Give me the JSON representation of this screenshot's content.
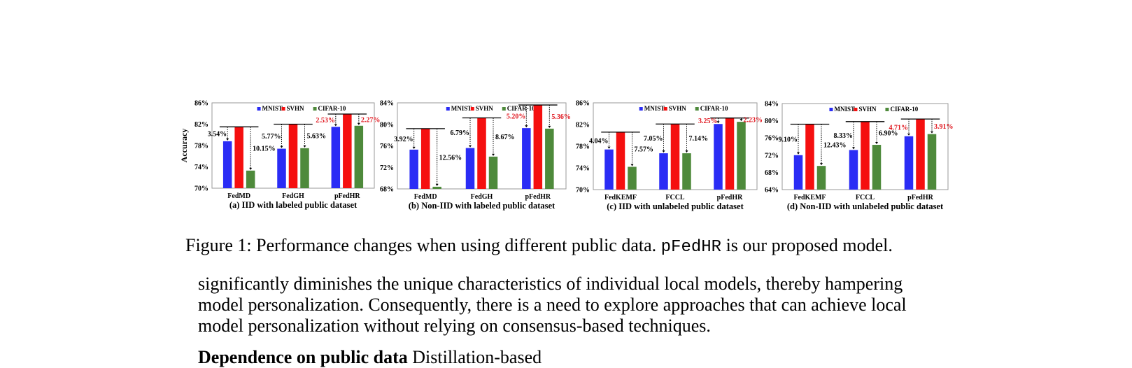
{
  "figure": {
    "colors": {
      "MNIST": "#2a2cf5",
      "SVHN": "#f50f0f",
      "CIFAR-10": "#4e8a3b",
      "highlight": "#e0141c"
    },
    "caption": {
      "prefix": "Figure 1: Performance changes when using different public data.",
      "model": "pFedHR",
      "suffix": "is our proposed model."
    }
  },
  "chart_data": [
    {
      "type": "bar",
      "ylabel": "Accuracy",
      "ylim": [
        70,
        86
      ],
      "yticks": [
        "70%",
        "74%",
        "78%",
        "82%",
        "86%"
      ],
      "legend": [
        "MNIST",
        "SVHN",
        "CIFAR-10"
      ],
      "legend_position": "top",
      "categories": [
        "FedMD",
        "FedGH",
        "pFedHR"
      ],
      "series": [
        {
          "name": "MNIST",
          "values": [
            78.8,
            77.4,
            81.5
          ]
        },
        {
          "name": "SVHN",
          "values": [
            81.5,
            82.0,
            83.9
          ]
        },
        {
          "name": "CIFAR-10",
          "values": [
            73.3,
            77.5,
            81.7
          ]
        }
      ],
      "annotations": [
        {
          "category": "FedMD",
          "side": "left",
          "text": "3.54%",
          "highlight": false
        },
        {
          "category": "FedMD",
          "side": "right",
          "text": "10.15%",
          "highlight": false
        },
        {
          "category": "FedGH",
          "side": "left",
          "text": "5.77%",
          "highlight": false
        },
        {
          "category": "FedGH",
          "side": "right",
          "text": "5.63%",
          "highlight": false
        },
        {
          "category": "pFedHR",
          "side": "left",
          "text": "2.53%",
          "highlight": true
        },
        {
          "category": "pFedHR",
          "side": "right",
          "text": "2.27%",
          "highlight": true
        }
      ],
      "subcaption": "(a) IID with labeled public dataset"
    },
    {
      "type": "bar",
      "ylabel": "",
      "ylim": [
        68,
        84
      ],
      "yticks": [
        "68%",
        "72%",
        "76%",
        "80%",
        "84%"
      ],
      "legend": [
        "MNIST",
        "SVHN",
        "CIFAR-10"
      ],
      "legend_position": "top",
      "categories": [
        "FedMD",
        "FedGH",
        "pFedHR"
      ],
      "series": [
        {
          "name": "MNIST",
          "values": [
            75.3,
            75.6,
            79.3
          ]
        },
        {
          "name": "SVHN",
          "values": [
            79.2,
            81.2,
            83.6
          ]
        },
        {
          "name": "CIFAR-10",
          "values": [
            68.4,
            74.0,
            79.2
          ]
        }
      ],
      "annotations": [
        {
          "category": "FedMD",
          "side": "left",
          "text": "3.92%",
          "highlight": false
        },
        {
          "category": "FedMD",
          "side": "right",
          "text": "12.56%",
          "highlight": false
        },
        {
          "category": "FedGH",
          "side": "left",
          "text": "6.79%",
          "highlight": false
        },
        {
          "category": "FedGH",
          "side": "right",
          "text": "8.67%",
          "highlight": false
        },
        {
          "category": "pFedHR",
          "side": "left",
          "text": "5.20%",
          "highlight": true
        },
        {
          "category": "pFedHR",
          "side": "right",
          "text": "5.36%",
          "highlight": true
        }
      ],
      "subcaption": "(b) Non-IID with labeled public dataset"
    },
    {
      "type": "bar",
      "ylabel": "",
      "ylim": [
        70,
        86
      ],
      "yticks": [
        "70%",
        "74%",
        "78%",
        "82%",
        "86%"
      ],
      "legend": [
        "MNIST",
        "SVHN",
        "CIFAR-10"
      ],
      "legend_position": "top",
      "categories": [
        "FedKEMF",
        "FCCL",
        "pFedHR"
      ],
      "series": [
        {
          "name": "MNIST",
          "values": [
            77.4,
            76.7,
            82.1
          ]
        },
        {
          "name": "SVHN",
          "values": [
            80.6,
            82.1,
            83.2
          ]
        },
        {
          "name": "CIFAR-10",
          "values": [
            74.2,
            76.7,
            82.5
          ]
        }
      ],
      "annotations": [
        {
          "category": "FedKEMF",
          "side": "left",
          "text": "4.04%",
          "highlight": false
        },
        {
          "category": "FedKEMF",
          "side": "right",
          "text": "7.57%",
          "highlight": false
        },
        {
          "category": "FCCL",
          "side": "left",
          "text": "7.05%",
          "highlight": false
        },
        {
          "category": "FCCL",
          "side": "right",
          "text": "7.14%",
          "highlight": false
        },
        {
          "category": "pFedHR",
          "side": "left",
          "text": "3.25%",
          "highlight": true
        },
        {
          "category": "pFedHR",
          "side": "right",
          "text": "2.23%",
          "highlight": true
        }
      ],
      "subcaption": "(c) IID with unlabeled public dataset"
    },
    {
      "type": "bar",
      "ylabel": "",
      "ylim": [
        64,
        84
      ],
      "yticks": [
        "64%",
        "68%",
        "72%",
        "76%",
        "80%",
        "84%"
      ],
      "legend": [
        "MNIST",
        "SVHN",
        "CIFAR-10"
      ],
      "legend_position": "top",
      "categories": [
        "FedKEMF",
        "FCCL",
        "pFedHR"
      ],
      "series": [
        {
          "name": "MNIST",
          "values": [
            72.0,
            73.2,
            76.4
          ]
        },
        {
          "name": "SVHN",
          "values": [
            79.2,
            79.8,
            80.4
          ]
        },
        {
          "name": "CIFAR-10",
          "values": [
            69.5,
            74.4,
            76.9
          ]
        }
      ],
      "annotations": [
        {
          "category": "FedKEMF",
          "side": "left",
          "text": "9.10%",
          "highlight": false
        },
        {
          "category": "FedKEMF",
          "side": "right",
          "text": "12.43%",
          "highlight": false
        },
        {
          "category": "FCCL",
          "side": "left",
          "text": "8.33%",
          "highlight": false
        },
        {
          "category": "FCCL",
          "side": "right",
          "text": "6.90%",
          "highlight": false
        },
        {
          "category": "pFedHR",
          "side": "left",
          "text": "4.71%",
          "highlight": true
        },
        {
          "category": "pFedHR",
          "side": "right",
          "text": "3.91%",
          "highlight": true
        }
      ],
      "subcaption": "(d) Non-IID with unlabeled public dataset"
    }
  ],
  "body": {
    "lines": [
      "significantly diminishes the unique characteristics of individual local models, thereby hampering",
      "model personalization. Consequently, there is a need to explore approaches that can achieve local",
      "model personalization without relying on consensus-based techniques."
    ],
    "next_heading": "Dependence on public data",
    "next_heading_rest": " Distillation-based"
  }
}
